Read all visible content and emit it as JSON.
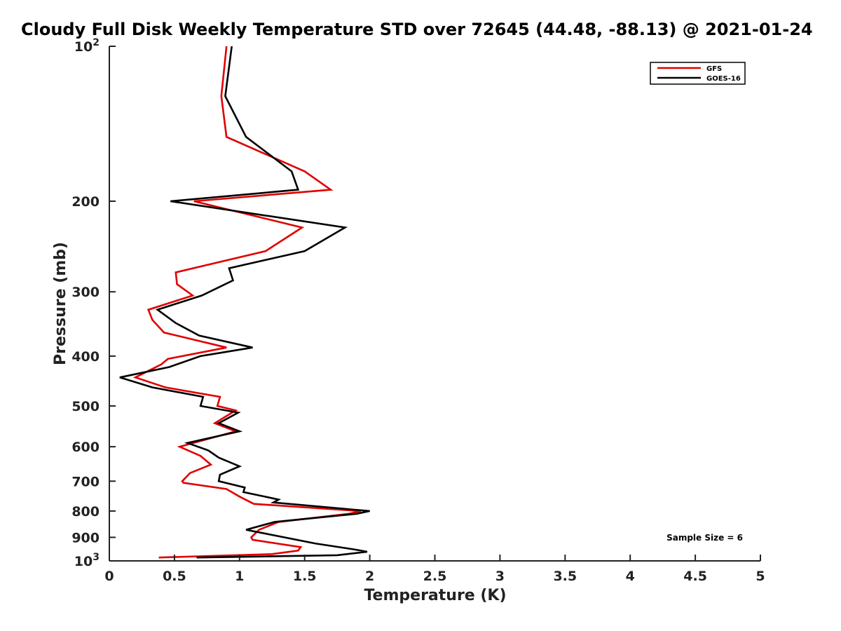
{
  "chart_data": {
    "type": "line",
    "title": "Cloudy Full Disk Weekly Temperature STD over 72645 (44.48, -88.13) @ 2021-01-24",
    "xlabel": "Temperature (K)",
    "ylabel": "Pressure (mb)",
    "xlim": [
      0,
      5
    ],
    "ylim": [
      1000,
      100
    ],
    "yscale": "log",
    "y_reversed": true,
    "grid": false,
    "legend_placement": "top-right",
    "xticks": [
      {
        "value": 0,
        "label": "0"
      },
      {
        "value": 0.5,
        "label": "0.5"
      },
      {
        "value": 1,
        "label": "1"
      },
      {
        "value": 1.5,
        "label": "1.5"
      },
      {
        "value": 2,
        "label": "2"
      },
      {
        "value": 2.5,
        "label": "2.5"
      },
      {
        "value": 3,
        "label": "3"
      },
      {
        "value": 3.5,
        "label": "3.5"
      },
      {
        "value": 4,
        "label": "4"
      },
      {
        "value": 4.5,
        "label": "4.5"
      },
      {
        "value": 5,
        "label": "5"
      }
    ],
    "yticks": [
      {
        "value": 100,
        "label": "10",
        "sup": "2"
      },
      {
        "value": 200,
        "label": "200",
        "sup": ""
      },
      {
        "value": 300,
        "label": "300",
        "sup": ""
      },
      {
        "value": 400,
        "label": "400",
        "sup": ""
      },
      {
        "value": 500,
        "label": "500",
        "sup": ""
      },
      {
        "value": 600,
        "label": "600",
        "sup": ""
      },
      {
        "value": 700,
        "label": "700",
        "sup": ""
      },
      {
        "value": 800,
        "label": "800",
        "sup": ""
      },
      {
        "value": 900,
        "label": "900",
        "sup": ""
      },
      {
        "value": 1000,
        "label": "10",
        "sup": "3"
      }
    ],
    "annotation": "Sample Size = 6",
    "series": [
      {
        "name": "GFS",
        "color": "#e00000",
        "points": [
          [
            0.9,
            100
          ],
          [
            0.86,
            125
          ],
          [
            0.9,
            150
          ],
          [
            1.5,
            175
          ],
          [
            1.7,
            190
          ],
          [
            0.65,
            200
          ],
          [
            1.48,
            225
          ],
          [
            1.2,
            250
          ],
          [
            0.51,
            275
          ],
          [
            0.52,
            290
          ],
          [
            0.64,
            305
          ],
          [
            0.3,
            325
          ],
          [
            0.33,
            340
          ],
          [
            0.42,
            360
          ],
          [
            0.9,
            385
          ],
          [
            0.45,
            405
          ],
          [
            0.4,
            415
          ],
          [
            0.2,
            440
          ],
          [
            0.43,
            460
          ],
          [
            0.85,
            480
          ],
          [
            0.83,
            500
          ],
          [
            0.97,
            510
          ],
          [
            0.81,
            540
          ],
          [
            0.97,
            560
          ],
          [
            0.54,
            600
          ],
          [
            0.7,
            625
          ],
          [
            0.78,
            650
          ],
          [
            0.62,
            675
          ],
          [
            0.56,
            700
          ],
          [
            0.57,
            705
          ],
          [
            0.9,
            725
          ],
          [
            1.0,
            750
          ],
          [
            1.11,
            775
          ],
          [
            1.93,
            800
          ],
          [
            1.84,
            810
          ],
          [
            1.3,
            840
          ],
          [
            1.15,
            870
          ],
          [
            1.09,
            900
          ],
          [
            1.1,
            910
          ],
          [
            1.47,
            940
          ],
          [
            1.45,
            955
          ],
          [
            1.25,
            970
          ],
          [
            0.38,
            985
          ]
        ]
      },
      {
        "name": "GOES-16",
        "color": "#000000",
        "points": [
          [
            0.94,
            100
          ],
          [
            0.89,
            125
          ],
          [
            1.05,
            150
          ],
          [
            1.4,
            175
          ],
          [
            1.45,
            190
          ],
          [
            0.47,
            200
          ],
          [
            1.81,
            225
          ],
          [
            1.5,
            250
          ],
          [
            0.92,
            270
          ],
          [
            0.95,
            285
          ],
          [
            0.71,
            305
          ],
          [
            0.37,
            325
          ],
          [
            0.51,
            345
          ],
          [
            0.69,
            365
          ],
          [
            1.1,
            385
          ],
          [
            0.7,
            400
          ],
          [
            0.46,
            420
          ],
          [
            0.08,
            440
          ],
          [
            0.33,
            460
          ],
          [
            0.72,
            480
          ],
          [
            0.7,
            500
          ],
          [
            0.99,
            515
          ],
          [
            0.84,
            540
          ],
          [
            1.0,
            560
          ],
          [
            0.6,
            590
          ],
          [
            0.76,
            610
          ],
          [
            0.84,
            630
          ],
          [
            1.0,
            655
          ],
          [
            0.85,
            680
          ],
          [
            0.84,
            700
          ],
          [
            1.04,
            720
          ],
          [
            1.03,
            735
          ],
          [
            1.3,
            760
          ],
          [
            1.26,
            770
          ],
          [
            2.0,
            800
          ],
          [
            1.9,
            810
          ],
          [
            1.27,
            840
          ],
          [
            1.05,
            870
          ],
          [
            1.15,
            880
          ],
          [
            1.58,
            925
          ],
          [
            1.88,
            950
          ],
          [
            1.98,
            960
          ],
          [
            1.75,
            975
          ],
          [
            0.67,
            985
          ]
        ]
      }
    ]
  }
}
